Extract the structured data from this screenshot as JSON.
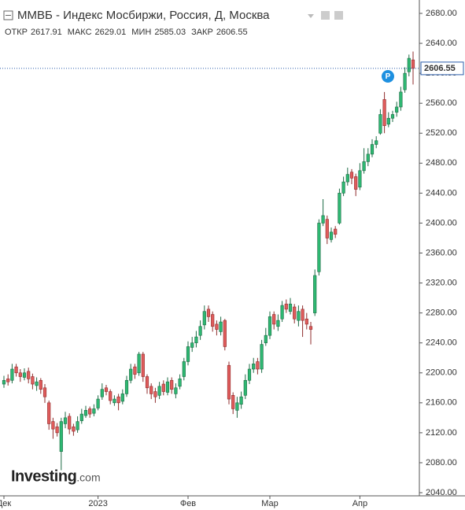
{
  "chart_data": {
    "type": "candlestick",
    "title": "ММВБ - Индекс Мосбиржи, Россия, Д, Москва",
    "ohlc_header": [
      {
        "label": "ОТКР",
        "value": 2617.91
      },
      {
        "label": "МАКС",
        "value": 2629.01
      },
      {
        "label": "МИН",
        "value": 2585.03
      },
      {
        "label": "ЗАКР",
        "value": 2606.55
      }
    ],
    "last_price": 2606.55,
    "annotation": "P",
    "logo": {
      "brand": "Investing",
      "suffix": ".com"
    },
    "up_color": "#2eb872",
    "down_color": "#e05c5c",
    "grid": false,
    "ylim": [
      2040,
      2680
    ],
    "yticks": [
      {
        "value": 2040,
        "label": "2040.00"
      },
      {
        "value": 2080,
        "label": "2080.00"
      },
      {
        "value": 2120,
        "label": "2120.00"
      },
      {
        "value": 2160,
        "label": "2160.00"
      },
      {
        "value": 2200,
        "label": "2200.00"
      },
      {
        "value": 2240,
        "label": "2240.00"
      },
      {
        "value": 2280,
        "label": "2280.00"
      },
      {
        "value": 2320,
        "label": "2320.00"
      },
      {
        "value": 2360,
        "label": "2360.00"
      },
      {
        "value": 2400,
        "label": "2400.00"
      },
      {
        "value": 2440,
        "label": "2440.00"
      },
      {
        "value": 2480,
        "label": "2480.00"
      },
      {
        "value": 2520,
        "label": "2520.00"
      },
      {
        "value": 2560,
        "label": "2560.00"
      },
      {
        "value": 2600,
        "label": "2600.00"
      },
      {
        "value": 2640,
        "label": "2640.00"
      },
      {
        "value": 2680,
        "label": "2680.00"
      }
    ],
    "categories": [
      "Дек",
      null,
      null,
      null,
      null,
      null,
      null,
      null,
      null,
      null,
      null,
      null,
      null,
      null,
      null,
      null,
      null,
      null,
      null,
      null,
      null,
      null,
      null,
      "2023",
      null,
      null,
      null,
      null,
      null,
      null,
      null,
      null,
      null,
      null,
      null,
      null,
      null,
      null,
      null,
      null,
      null,
      null,
      null,
      null,
      null,
      "Фев",
      null,
      null,
      null,
      null,
      null,
      null,
      null,
      null,
      null,
      null,
      null,
      null,
      null,
      null,
      null,
      null,
      null,
      null,
      null,
      "Мар",
      null,
      null,
      null,
      null,
      null,
      null,
      null,
      null,
      null,
      null,
      null,
      null,
      null,
      null,
      null,
      null,
      null,
      null,
      null,
      null,
      null,
      "Апр",
      null,
      null,
      null,
      null,
      null,
      null,
      null,
      null,
      null,
      null,
      null,
      null,
      null
    ],
    "open": [
      2185,
      2192,
      2190,
      2208,
      2200,
      2194,
      2202,
      2195,
      2183,
      2190,
      2180,
      2160,
      2135,
      2128,
      2095,
      2132,
      2142,
      2128,
      2124,
      2136,
      2143,
      2152,
      2146,
      2153,
      2168,
      2180,
      2175,
      2160,
      2168,
      2162,
      2172,
      2190,
      2208,
      2200,
      2225,
      2195,
      2182,
      2175,
      2170,
      2185,
      2174,
      2190,
      2172,
      2182,
      2195,
      2215,
      2234,
      2240,
      2250,
      2264,
      2285,
      2278,
      2265,
      2255,
      2270,
      2210,
      2170,
      2150,
      2158,
      2170,
      2190,
      2205,
      2215,
      2205,
      2240,
      2250,
      2278,
      2262,
      2272,
      2292,
      2282,
      2288,
      2270,
      2285,
      2272,
      2262,
      2280,
      2335,
      2400,
      2405,
      2378,
      2392,
      2400,
      2440,
      2455,
      2468,
      2462,
      2448,
      2470,
      2482,
      2492,
      2505,
      2520,
      2565,
      2532,
      2540,
      2548,
      2555,
      2578,
      2602,
      2617.91
    ],
    "high": [
      2196,
      2198,
      2212,
      2212,
      2205,
      2206,
      2207,
      2199,
      2194,
      2193,
      2185,
      2163,
      2140,
      2133,
      2140,
      2148,
      2146,
      2132,
      2142,
      2152,
      2156,
      2155,
      2158,
      2170,
      2186,
      2184,
      2178,
      2170,
      2172,
      2178,
      2196,
      2212,
      2212,
      2228,
      2228,
      2198,
      2186,
      2180,
      2188,
      2190,
      2194,
      2194,
      2186,
      2198,
      2220,
      2242,
      2248,
      2256,
      2270,
      2290,
      2290,
      2282,
      2270,
      2275,
      2272,
      2215,
      2174,
      2168,
      2175,
      2198,
      2212,
      2220,
      2220,
      2244,
      2260,
      2282,
      2282,
      2278,
      2296,
      2298,
      2300,
      2292,
      2290,
      2290,
      2280,
      2268,
      2338,
      2405,
      2432,
      2410,
      2394,
      2396,
      2446,
      2462,
      2474,
      2472,
      2466,
      2480,
      2500,
      2500,
      2512,
      2516,
      2552,
      2575,
      2548,
      2550,
      2562,
      2582,
      2608,
      2625,
      2629.01
    ],
    "low": [
      2180,
      2183,
      2186,
      2195,
      2188,
      2190,
      2186,
      2178,
      2176,
      2172,
      2160,
      2124,
      2112,
      2115,
      2070,
      2126,
      2118,
      2116,
      2120,
      2132,
      2140,
      2140,
      2142,
      2150,
      2164,
      2170,
      2158,
      2156,
      2150,
      2158,
      2168,
      2186,
      2192,
      2196,
      2188,
      2172,
      2165,
      2160,
      2165,
      2170,
      2170,
      2172,
      2166,
      2178,
      2190,
      2210,
      2228,
      2234,
      2244,
      2258,
      2268,
      2255,
      2250,
      2250,
      2230,
      2158,
      2145,
      2140,
      2152,
      2165,
      2185,
      2200,
      2198,
      2200,
      2236,
      2245,
      2258,
      2256,
      2268,
      2280,
      2278,
      2266,
      2262,
      2248,
      2258,
      2238,
      2276,
      2330,
      2396,
      2372,
      2374,
      2380,
      2398,
      2436,
      2450,
      2452,
      2436,
      2444,
      2466,
      2476,
      2488,
      2500,
      2518,
      2520,
      2528,
      2535,
      2542,
      2550,
      2574,
      2596,
      2585.03
    ],
    "close": [
      2190,
      2188,
      2205,
      2200,
      2195,
      2200,
      2192,
      2185,
      2188,
      2178,
      2168,
      2132,
      2125,
      2120,
      2135,
      2140,
      2125,
      2122,
      2135,
      2145,
      2150,
      2145,
      2152,
      2165,
      2178,
      2175,
      2163,
      2165,
      2160,
      2172,
      2190,
      2205,
      2198,
      2225,
      2195,
      2180,
      2172,
      2168,
      2182,
      2175,
      2188,
      2178,
      2180,
      2192,
      2215,
      2235,
      2240,
      2248,
      2262,
      2282,
      2275,
      2262,
      2258,
      2268,
      2235,
      2165,
      2152,
      2160,
      2168,
      2190,
      2205,
      2212,
      2205,
      2238,
      2250,
      2275,
      2265,
      2270,
      2290,
      2285,
      2292,
      2272,
      2282,
      2270,
      2265,
      2258,
      2330,
      2400,
      2410,
      2380,
      2388,
      2385,
      2440,
      2455,
      2465,
      2460,
      2445,
      2470,
      2482,
      2492,
      2505,
      2510,
      2545,
      2530,
      2540,
      2545,
      2555,
      2575,
      2600,
      2620,
      2606.55
    ]
  }
}
